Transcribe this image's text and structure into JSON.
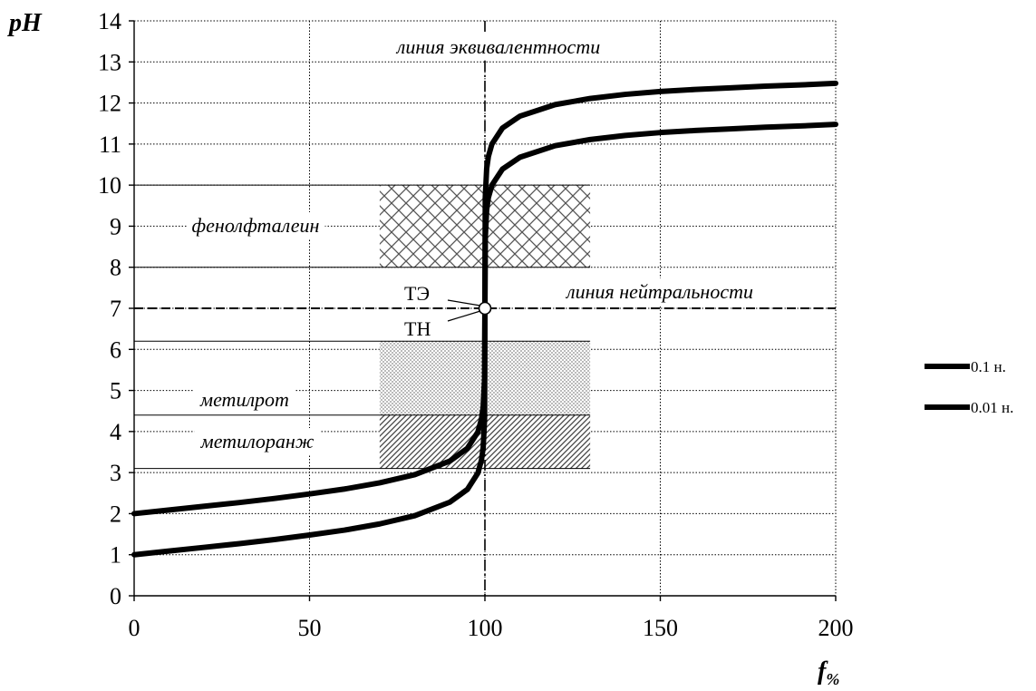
{
  "chart_data": {
    "type": "line",
    "xlabel": "f",
    "xlabel_sub": "%",
    "ylabel": "pH",
    "xlim": [
      0,
      200
    ],
    "ylim": [
      0,
      14
    ],
    "x_ticks": [
      0,
      50,
      100,
      150,
      200
    ],
    "y_ticks": [
      0,
      1,
      2,
      3,
      4,
      5,
      6,
      7,
      8,
      9,
      10,
      11,
      12,
      13,
      14
    ],
    "grid": true,
    "legend_position": "right",
    "series": [
      {
        "name": "0.1 н.",
        "x": [
          0,
          10,
          20,
          30,
          40,
          50,
          60,
          70,
          80,
          90,
          95,
          98,
          99,
          99.5,
          99.9,
          100,
          100.1,
          100.5,
          101,
          102,
          105,
          110,
          120,
          130,
          140,
          150,
          160,
          170,
          180,
          190,
          200
        ],
        "y": [
          1.0,
          1.09,
          1.18,
          1.27,
          1.37,
          1.48,
          1.6,
          1.75,
          1.95,
          2.28,
          2.59,
          2.99,
          3.3,
          3.6,
          4.3,
          7.0,
          9.7,
          10.4,
          10.7,
          11.0,
          11.39,
          11.68,
          11.96,
          12.11,
          12.21,
          12.28,
          12.33,
          12.37,
          12.41,
          12.44,
          12.48
        ]
      },
      {
        "name": "0.01 н.",
        "x": [
          0,
          10,
          20,
          30,
          40,
          50,
          60,
          70,
          80,
          90,
          95,
          98,
          99,
          99.5,
          99.9,
          100,
          100.1,
          100.5,
          101,
          102,
          105,
          110,
          120,
          130,
          140,
          150,
          160,
          170,
          180,
          190,
          200
        ],
        "y": [
          2.0,
          2.09,
          2.18,
          2.27,
          2.37,
          2.48,
          2.6,
          2.75,
          2.95,
          3.28,
          3.59,
          3.99,
          4.3,
          4.6,
          5.3,
          7.0,
          8.7,
          9.4,
          9.7,
          10.0,
          10.39,
          10.68,
          10.96,
          11.11,
          11.21,
          11.28,
          11.33,
          11.37,
          11.41,
          11.44,
          11.48
        ]
      }
    ],
    "indicator_zones": [
      {
        "label": "фенолфталеин",
        "from": 8.0,
        "to": 10.0,
        "x_from": 70,
        "x_to": 130,
        "pattern": "crosshatch"
      },
      {
        "label": "метилрот",
        "from": 3.1,
        "to": 6.2,
        "x_from": 70,
        "x_to": 130,
        "pattern": "dots"
      },
      {
        "label": "метилоранж",
        "from": 3.1,
        "to": 4.4,
        "x_from": 70,
        "x_to": 130,
        "pattern": "diagonal"
      }
    ],
    "reference_lines": [
      {
        "label": "линия эквивалентности",
        "orientation": "vertical",
        "value": 100
      },
      {
        "label": "линия нейтральности",
        "orientation": "horizontal",
        "value": 7
      }
    ],
    "points": [
      {
        "x": 100,
        "y": 7,
        "labels": [
          "ТЭ",
          "ТН"
        ]
      }
    ]
  }
}
